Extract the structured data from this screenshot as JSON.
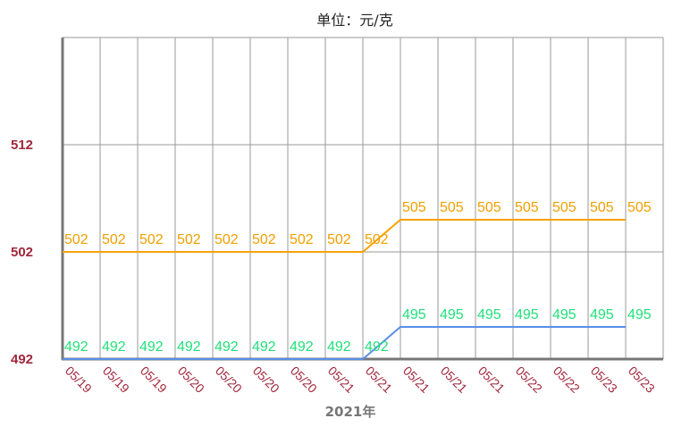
{
  "chart_data": {
    "type": "line",
    "title": "单位：元/克",
    "xlabel": "2021年",
    "ylabel": "",
    "categories": [
      "05/19",
      "05/19",
      "05/19",
      "05/20",
      "05/20",
      "05/20",
      "05/20",
      "05/21",
      "05/21",
      "05/21",
      "05/21",
      "05/21",
      "05/22",
      "05/22",
      "05/23",
      "05/23"
    ],
    "yticks": [
      "512",
      "502",
      "492"
    ],
    "ylim": [
      492,
      522
    ],
    "grid": true,
    "legend": "none",
    "series": [
      {
        "color": "#f5a300",
        "label_color": "#f0a000",
        "values": [
          502,
          502,
          502,
          502,
          502,
          502,
          502,
          502,
          502,
          505,
          505,
          505,
          505,
          505,
          505,
          505
        ]
      },
      {
        "color": "#5b8ee6",
        "label_color": "#22e07a",
        "values": [
          492,
          492,
          492,
          492,
          492,
          492,
          492,
          492,
          492,
          495,
          495,
          495,
          495,
          495,
          495,
          495
        ]
      }
    ],
    "label_texts": [
      [
        "502",
        "502",
        "502",
        "502",
        "502",
        "502",
        "502",
        "502",
        "502",
        "505",
        "505",
        "505",
        "505",
        "505",
        "505",
        "505"
      ],
      [
        "492",
        "492",
        "492",
        "492",
        "492",
        "492",
        "492",
        "492",
        "492",
        "495",
        "495",
        "495",
        "495",
        "495",
        "495",
        "495"
      ]
    ]
  }
}
